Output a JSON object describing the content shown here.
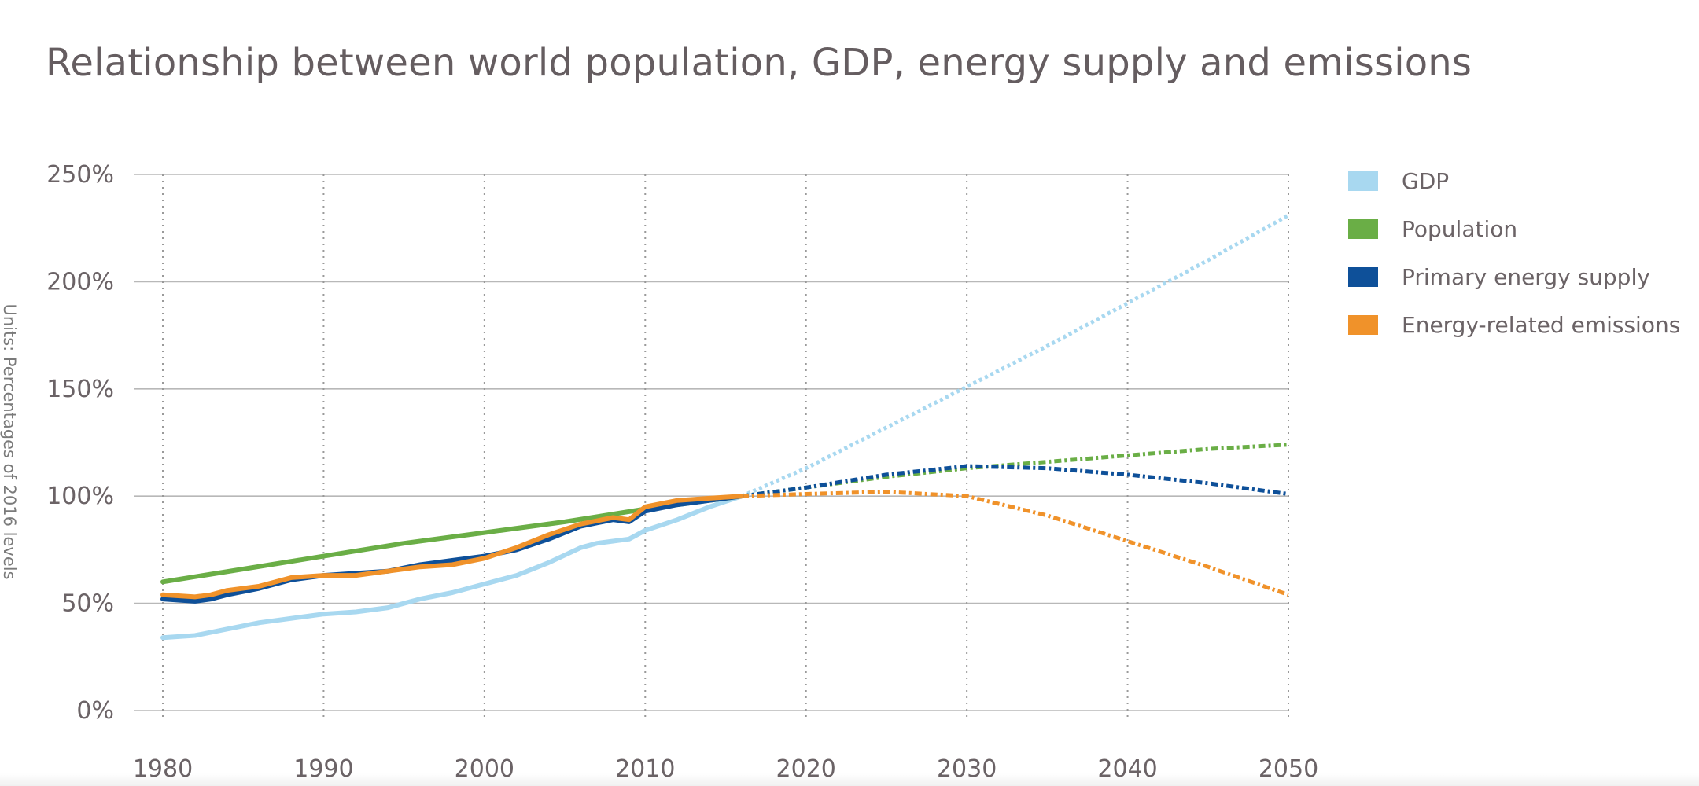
{
  "chart_data": {
    "type": "line",
    "title": "Relationship between world population, GDP, energy supply and emissions",
    "ylabel": "Units: Percentages of 2016 levels",
    "xlim": [
      1980,
      2050
    ],
    "ylim": [
      0,
      250
    ],
    "x_ticks": [
      "1980",
      "1990",
      "2000",
      "2010",
      "2020",
      "2030",
      "2040",
      "2050"
    ],
    "y_ticks": [
      "0%",
      "50%",
      "100%",
      "150%",
      "200%",
      "250%"
    ],
    "grid": true,
    "legend_position": "right",
    "projection_start": 2016,
    "series": [
      {
        "name": "GDP",
        "color": "#a8d8f0",
        "historical": [
          [
            1980,
            34
          ],
          [
            1982,
            35
          ],
          [
            1984,
            38
          ],
          [
            1986,
            41
          ],
          [
            1988,
            43
          ],
          [
            1990,
            45
          ],
          [
            1992,
            46
          ],
          [
            1994,
            48
          ],
          [
            1996,
            52
          ],
          [
            1998,
            55
          ],
          [
            2000,
            59
          ],
          [
            2002,
            63
          ],
          [
            2004,
            69
          ],
          [
            2006,
            76
          ],
          [
            2007,
            78
          ],
          [
            2008,
            79
          ],
          [
            2009,
            80
          ],
          [
            2010,
            84
          ],
          [
            2012,
            89
          ],
          [
            2014,
            95
          ],
          [
            2016,
            100
          ]
        ],
        "projection": [
          [
            2016,
            100
          ],
          [
            2020,
            113
          ],
          [
            2025,
            132
          ],
          [
            2030,
            151
          ],
          [
            2035,
            170
          ],
          [
            2040,
            190
          ],
          [
            2045,
            210
          ],
          [
            2050,
            231
          ]
        ]
      },
      {
        "name": "Population",
        "color": "#6aae46",
        "historical": [
          [
            1980,
            60
          ],
          [
            1985,
            66
          ],
          [
            1990,
            72
          ],
          [
            1995,
            78
          ],
          [
            2000,
            83
          ],
          [
            2005,
            88
          ],
          [
            2010,
            94
          ],
          [
            2016,
            100
          ]
        ],
        "projection": [
          [
            2016,
            100
          ],
          [
            2020,
            104
          ],
          [
            2025,
            109
          ],
          [
            2030,
            113
          ],
          [
            2035,
            116
          ],
          [
            2040,
            119
          ],
          [
            2045,
            122
          ],
          [
            2050,
            124
          ]
        ]
      },
      {
        "name": "Primary energy supply",
        "color": "#0e5099",
        "historical": [
          [
            1980,
            52
          ],
          [
            1982,
            51
          ],
          [
            1983,
            52
          ],
          [
            1984,
            54
          ],
          [
            1986,
            57
          ],
          [
            1988,
            61
          ],
          [
            1990,
            63
          ],
          [
            1992,
            64
          ],
          [
            1994,
            65
          ],
          [
            1996,
            68
          ],
          [
            1998,
            70
          ],
          [
            2000,
            72
          ],
          [
            2002,
            75
          ],
          [
            2004,
            80
          ],
          [
            2006,
            86
          ],
          [
            2008,
            89
          ],
          [
            2009,
            88
          ],
          [
            2010,
            93
          ],
          [
            2012,
            96
          ],
          [
            2014,
            98
          ],
          [
            2016,
            100
          ]
        ],
        "projection": [
          [
            2016,
            100
          ],
          [
            2020,
            104
          ],
          [
            2025,
            110
          ],
          [
            2030,
            114
          ],
          [
            2035,
            113
          ],
          [
            2040,
            110
          ],
          [
            2045,
            106
          ],
          [
            2050,
            101
          ]
        ]
      },
      {
        "name": "Energy-related emissions",
        "color": "#f0922a",
        "historical": [
          [
            1980,
            54
          ],
          [
            1982,
            53
          ],
          [
            1983,
            54
          ],
          [
            1984,
            56
          ],
          [
            1986,
            58
          ],
          [
            1988,
            62
          ],
          [
            1990,
            63
          ],
          [
            1992,
            63
          ],
          [
            1994,
            65
          ],
          [
            1996,
            67
          ],
          [
            1998,
            68
          ],
          [
            2000,
            71
          ],
          [
            2002,
            76
          ],
          [
            2004,
            82
          ],
          [
            2006,
            87
          ],
          [
            2008,
            90
          ],
          [
            2009,
            89
          ],
          [
            2010,
            95
          ],
          [
            2012,
            98
          ],
          [
            2014,
            99
          ],
          [
            2016,
            100
          ]
        ],
        "projection": [
          [
            2016,
            100
          ],
          [
            2020,
            101
          ],
          [
            2025,
            102
          ],
          [
            2030,
            100
          ],
          [
            2035,
            91
          ],
          [
            2040,
            79
          ],
          [
            2045,
            67
          ],
          [
            2050,
            54
          ]
        ]
      }
    ]
  }
}
